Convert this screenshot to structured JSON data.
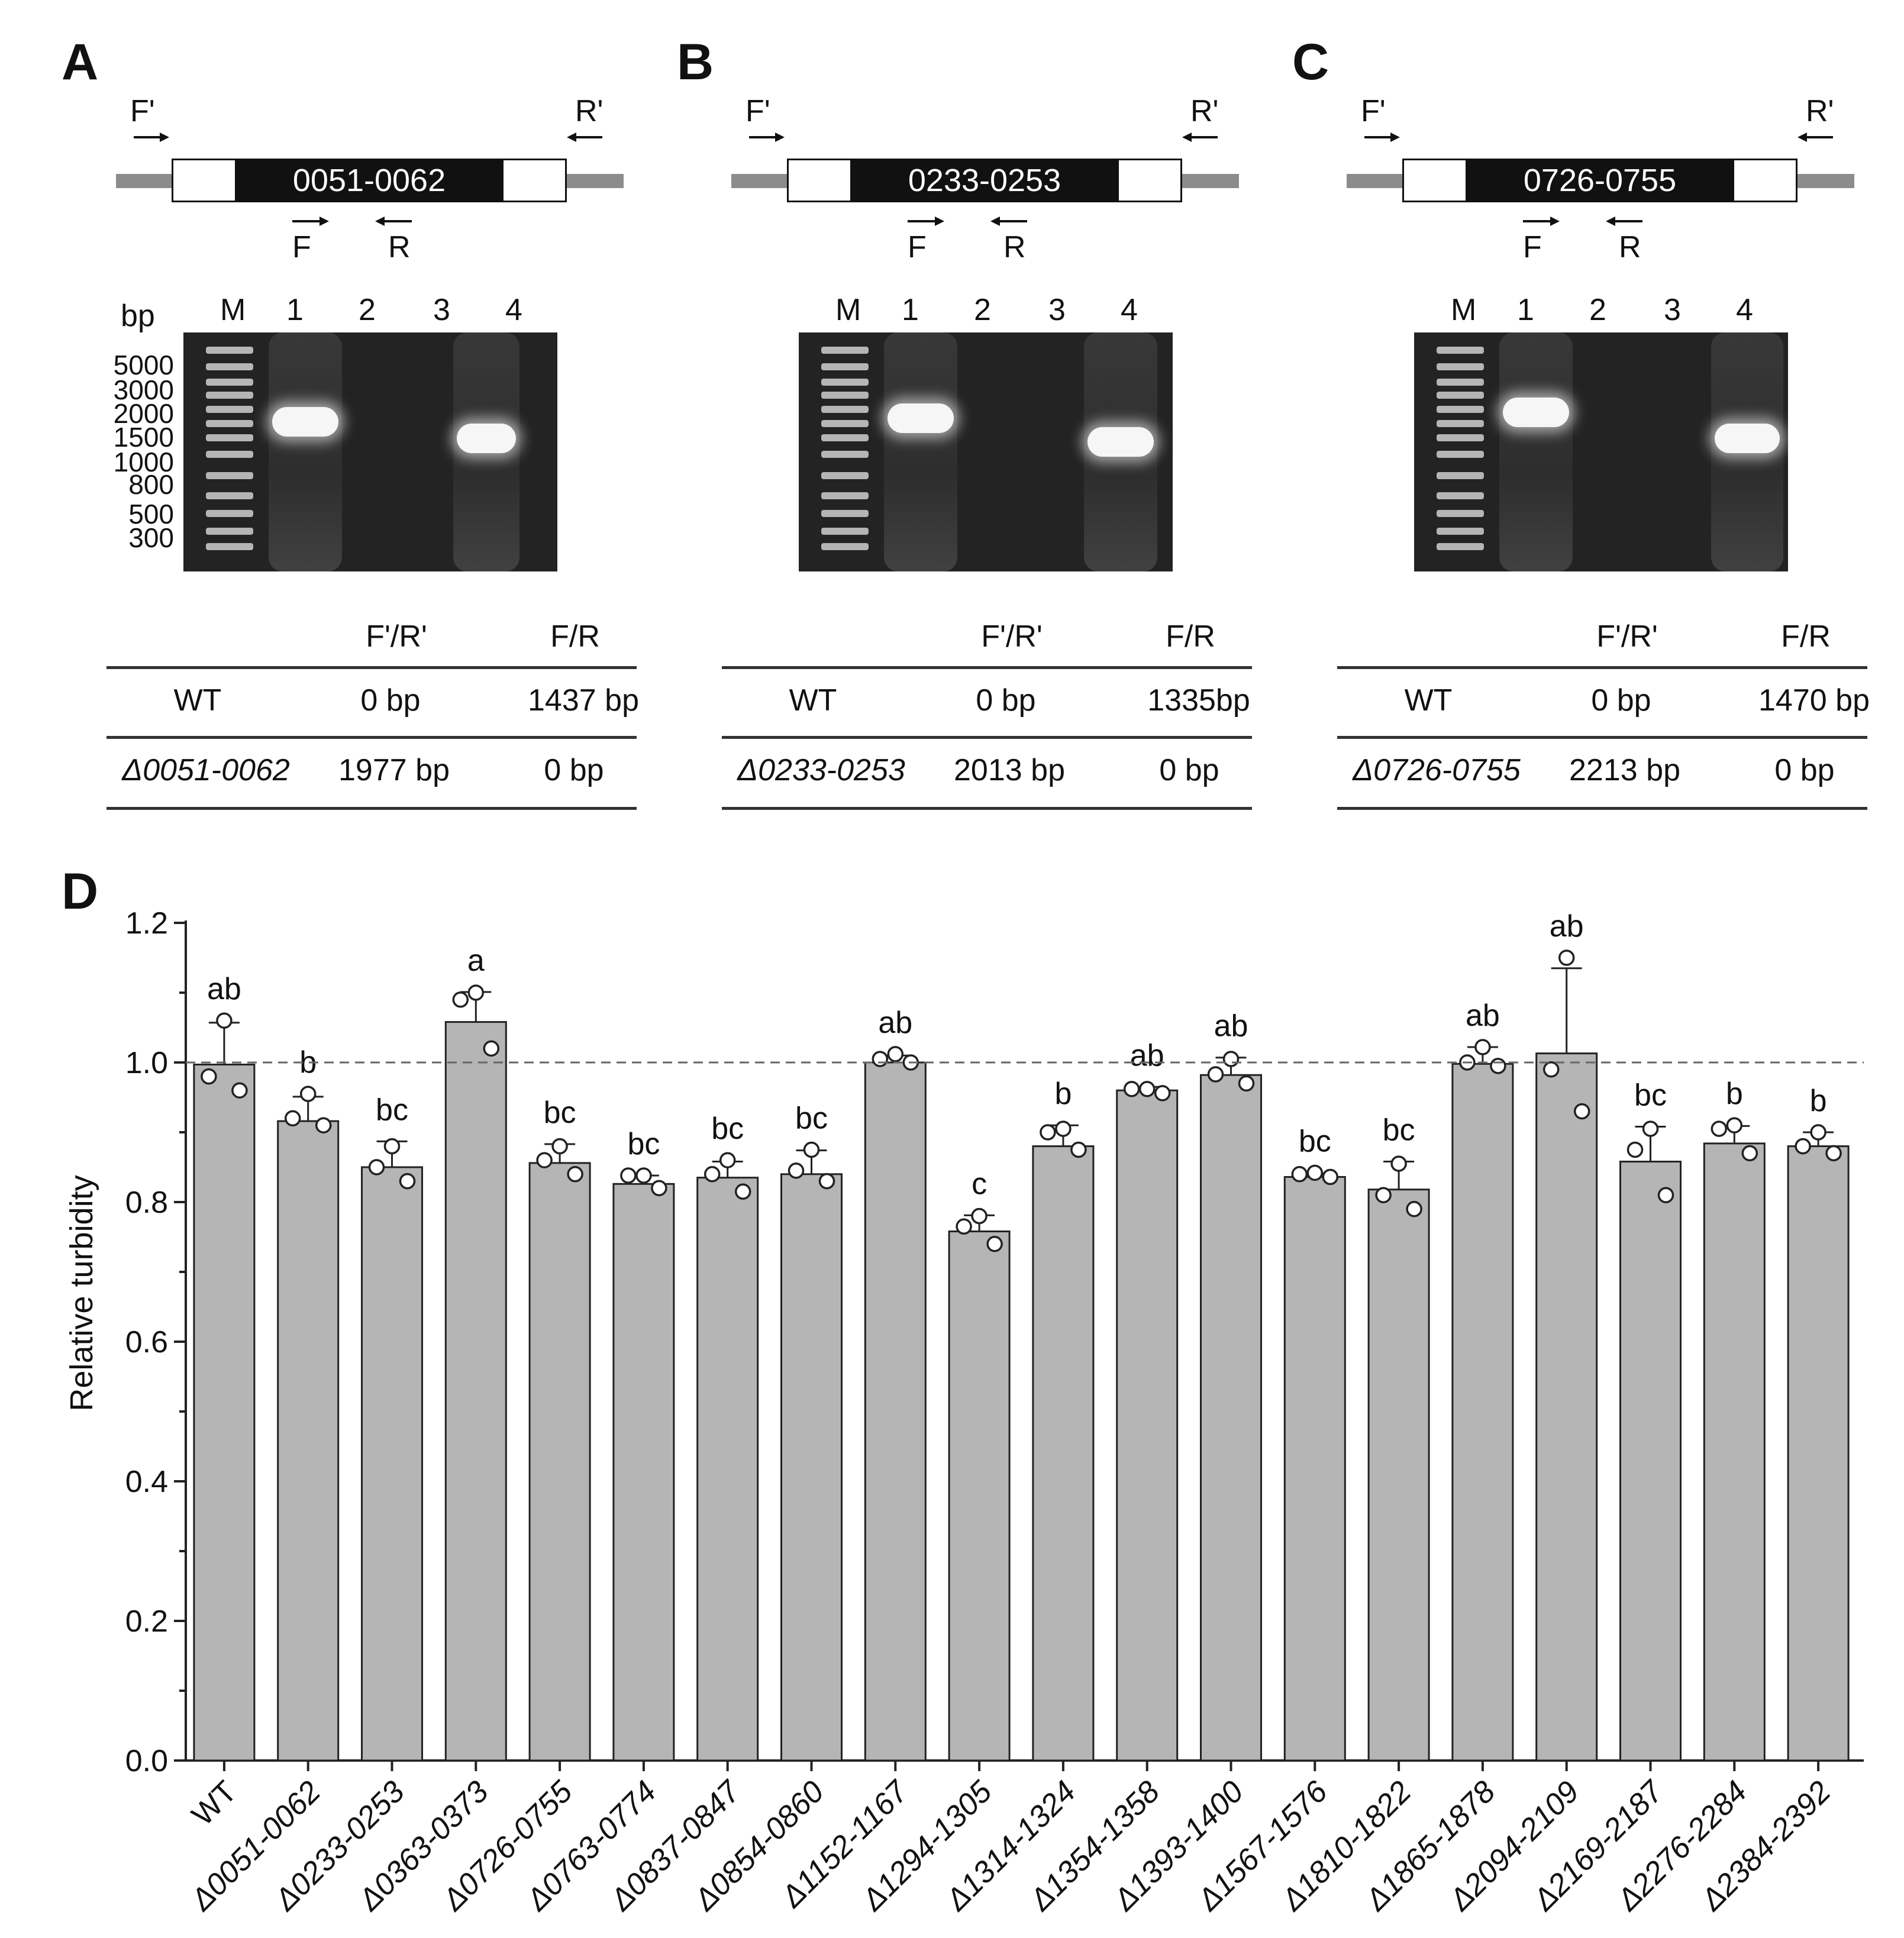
{
  "panels": [
    {
      "label": "A",
      "gene_id": "0051-0062",
      "primers": {
        "outer_fwd": "F'",
        "outer_rev": "R'",
        "inner_fwd": "F",
        "inner_rev": "R"
      },
      "gel": {
        "unit": "bp",
        "lane_labels": [
          "M",
          "1",
          "2",
          "3",
          "4"
        ],
        "marker_sizes": [
          "5000",
          "3000",
          "2000",
          "1500",
          "1000",
          "800",
          "500",
          "300"
        ]
      },
      "table": {
        "headers": [
          "",
          "F'/R'",
          "F/R"
        ],
        "rows": [
          {
            "strain": "WT",
            "outer": "0 bp",
            "inner": "1437 bp"
          },
          {
            "strain": "Δ0051-0062",
            "outer": "1977 bp",
            "inner": "0 bp"
          }
        ]
      }
    },
    {
      "label": "B",
      "gene_id": "0233-0253",
      "primers": {
        "outer_fwd": "F'",
        "outer_rev": "R'",
        "inner_fwd": "F",
        "inner_rev": "R"
      },
      "gel": {
        "unit": "",
        "lane_labels": [
          "M",
          "1",
          "2",
          "3",
          "4"
        ],
        "marker_sizes": []
      },
      "table": {
        "headers": [
          "",
          "F'/R'",
          "F/R"
        ],
        "rows": [
          {
            "strain": "WT",
            "outer": "0 bp",
            "inner": "1335bp"
          },
          {
            "strain": "Δ0233-0253",
            "outer": "2013 bp",
            "inner": "0 bp"
          }
        ]
      }
    },
    {
      "label": "C",
      "gene_id": "0726-0755",
      "primers": {
        "outer_fwd": "F'",
        "outer_rev": "R'",
        "inner_fwd": "F",
        "inner_rev": "R"
      },
      "gel": {
        "unit": "",
        "lane_labels": [
          "M",
          "1",
          "2",
          "3",
          "4"
        ],
        "marker_sizes": []
      },
      "table": {
        "headers": [
          "",
          "F'/R'",
          "F/R"
        ],
        "rows": [
          {
            "strain": "WT",
            "outer": "0 bp",
            "inner": "1470 bp"
          },
          {
            "strain": "Δ0726-0755",
            "outer": "2213 bp",
            "inner": "0 bp"
          }
        ]
      }
    }
  ],
  "chart_data": {
    "panel_label": "D",
    "type": "bar",
    "title": "",
    "xlabel": "",
    "ylabel": "Relative turbidity",
    "ylim": [
      0,
      1.2
    ],
    "yticks": [
      "0.0",
      "0.2",
      "0.4",
      "0.6",
      "0.8",
      "1.0",
      "1.2"
    ],
    "reference_line": 1.0,
    "grid": false,
    "categories": [
      "WT",
      "Δ0051-0062",
      "Δ0233-0253",
      "Δ0363-0373",
      "Δ0726-0755",
      "Δ0763-0774",
      "Δ0837-0847",
      "Δ0854-0860",
      "Δ1152-1167",
      "Δ1294-1305",
      "Δ1314-1324",
      "Δ1354-1358",
      "Δ1393-1400",
      "Δ1567-1576",
      "Δ1810-1822",
      "Δ1865-1878",
      "Δ2094-2109",
      "Δ2169-2187",
      "Δ2276-2284",
      "Δ2384-2392"
    ],
    "values": [
      0.997,
      0.916,
      0.85,
      1.058,
      0.856,
      0.826,
      0.835,
      0.84,
      1.0,
      0.758,
      0.88,
      0.96,
      0.982,
      0.836,
      0.818,
      0.998,
      1.013,
      0.858,
      0.884,
      0.88
    ],
    "errors": [
      0.06,
      0.035,
      0.037,
      0.043,
      0.027,
      0.012,
      0.023,
      0.034,
      0.01,
      0.023,
      0.03,
      0.005,
      0.025,
      0.005,
      0.04,
      0.024,
      0.122,
      0.05,
      0.025,
      0.02
    ],
    "points": [
      [
        1.06,
        0.98,
        0.96
      ],
      [
        0.955,
        0.92,
        0.91
      ],
      [
        0.88,
        0.85,
        0.83
      ],
      [
        1.1,
        1.09,
        1.02
      ],
      [
        0.88,
        0.86,
        0.84
      ],
      [
        0.838,
        0.838,
        0.82
      ],
      [
        0.86,
        0.84,
        0.815
      ],
      [
        0.875,
        0.845,
        0.83
      ],
      [
        1.012,
        1.005,
        1.0
      ],
      [
        0.78,
        0.765,
        0.74
      ],
      [
        0.905,
        0.9,
        0.875
      ],
      [
        0.962,
        0.962,
        0.956
      ],
      [
        1.005,
        0.983,
        0.97
      ],
      [
        0.842,
        0.84,
        0.836
      ],
      [
        0.855,
        0.81,
        0.79
      ],
      [
        1.022,
        1.0,
        0.995
      ],
      [
        1.15,
        0.99,
        0.93
      ],
      [
        0.905,
        0.875,
        0.81
      ],
      [
        0.91,
        0.905,
        0.87
      ],
      [
        0.9,
        0.88,
        0.87
      ]
    ],
    "significance": [
      "ab",
      "b",
      "bc",
      "a",
      "bc",
      "bc",
      "bc",
      "bc",
      "ab",
      "c",
      "b",
      "ab",
      "ab",
      "bc",
      "bc",
      "ab",
      "ab",
      "bc",
      "b",
      "b"
    ],
    "colors": {
      "bar": "#b5b5b5",
      "bar_edge": "#222222",
      "point_edge": "#222222",
      "reference": "#666666"
    }
  }
}
